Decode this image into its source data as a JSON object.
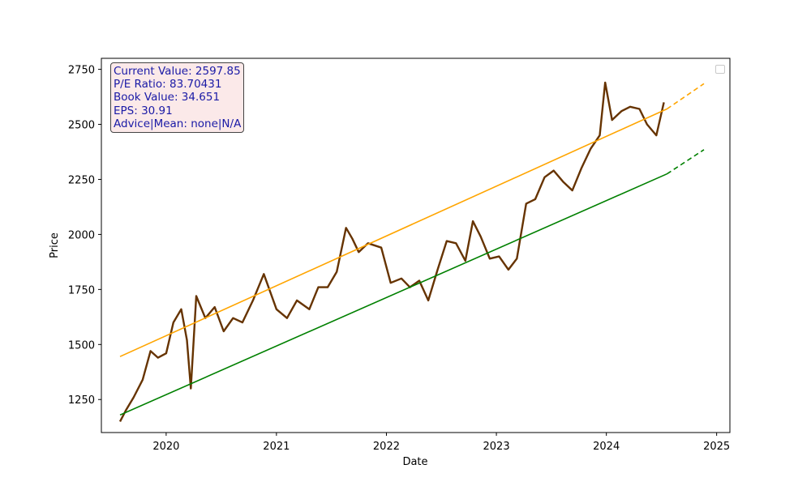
{
  "chart_data": {
    "type": "line",
    "xlabel": "Date",
    "ylabel": "Price",
    "x_tick_labels": [
      "2020",
      "2021",
      "2022",
      "2023",
      "2024",
      "2025"
    ],
    "y_tick_labels": [
      "1250",
      "1500",
      "1750",
      "2000",
      "2250",
      "2500",
      "2750"
    ],
    "xlim": [
      "2019-05-31",
      "2025-02-14"
    ],
    "ylim": [
      1100,
      2800
    ],
    "grid": false,
    "legend": "top-right",
    "series": [
      {
        "color": "#663300",
        "style": "solid",
        "x": [
          "2019-08-01",
          "2019-08-20",
          "2019-09-15",
          "2019-10-15",
          "2019-11-10",
          "2019-12-05",
          "2020-01-01",
          "2020-01-25",
          "2020-02-20",
          "2020-03-10",
          "2020-03-23",
          "2020-04-10",
          "2020-05-10",
          "2020-06-10",
          "2020-07-10",
          "2020-08-10",
          "2020-09-10",
          "2020-10-15",
          "2020-11-20",
          "2021-01-01",
          "2021-02-05",
          "2021-03-10",
          "2021-04-20",
          "2021-05-20",
          "2021-06-20",
          "2021-07-20",
          "2021-08-20",
          "2021-09-10",
          "2021-10-01",
          "2021-11-01",
          "2021-12-15",
          "2022-01-15",
          "2022-02-20",
          "2022-03-20",
          "2022-04-20",
          "2022-05-20",
          "2022-06-20",
          "2022-07-20",
          "2022-08-20",
          "2022-09-20",
          "2022-10-15",
          "2022-11-10",
          "2022-12-10",
          "2023-01-10",
          "2023-02-10",
          "2023-03-10",
          "2023-04-10",
          "2023-05-10",
          "2023-06-10",
          "2023-07-10",
          "2023-08-10",
          "2023-09-10",
          "2023-10-10",
          "2023-11-10",
          "2023-12-10",
          "2023-12-28",
          "2024-01-20",
          "2024-02-20",
          "2024-03-20",
          "2024-04-20",
          "2024-05-15",
          "2024-06-15",
          "2024-07-10"
        ],
        "y": [
          1150,
          1200,
          1260,
          1340,
          1470,
          1440,
          1460,
          1600,
          1660,
          1520,
          1300,
          1720,
          1620,
          1670,
          1560,
          1620,
          1600,
          1700,
          1820,
          1660,
          1620,
          1700,
          1660,
          1760,
          1760,
          1830,
          2030,
          1980,
          1920,
          1960,
          1940,
          1780,
          1800,
          1760,
          1790,
          1700,
          1840,
          1970,
          1960,
          1880,
          2060,
          1990,
          1890,
          1900,
          1840,
          1890,
          2140,
          2160,
          2260,
          2290,
          2240,
          2200,
          2300,
          2390,
          2450,
          2690,
          2520,
          2560,
          2580,
          2570,
          2500,
          2450,
          2600
        ]
      },
      {
        "color": "#ffa500",
        "style": "solid",
        "x": [
          "2019-08-01",
          "2024-07-20"
        ],
        "y": [
          1445,
          2570
        ]
      },
      {
        "color": "#ffa500",
        "style": "dashed",
        "x": [
          "2024-07-20",
          "2024-11-20"
        ],
        "y": [
          2570,
          2685
        ]
      },
      {
        "color": "#008000",
        "style": "solid",
        "x": [
          "2019-08-01",
          "2024-07-20"
        ],
        "y": [
          1180,
          2275
        ]
      },
      {
        "color": "#008000",
        "style": "dashed",
        "x": [
          "2024-07-20",
          "2024-11-20"
        ],
        "y": [
          2275,
          2385
        ]
      }
    ]
  },
  "info": {
    "current_value": "Current Value: 2597.85",
    "pe_ratio": "P/E Ratio: 83.70431",
    "book_value": "Book Value: 34.651",
    "eps": "EPS: 30.91",
    "advice": "Advice|Mean: none|N/A"
  }
}
